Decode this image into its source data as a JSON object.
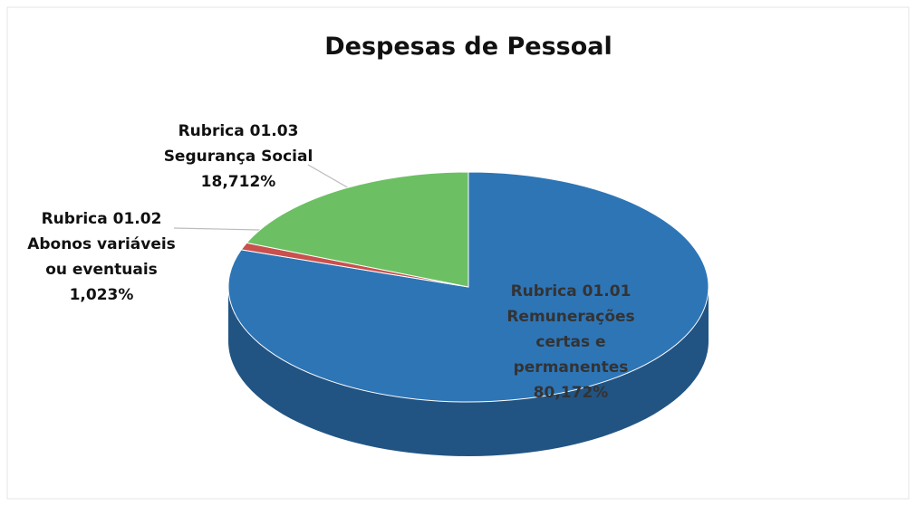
{
  "chart_data": {
    "type": "pie3d",
    "title": "Despesas de Pessoal",
    "categories": [
      "Rubrica 01.01\nRemunerações\ncertas e\npermanentes",
      "Rubrica 01.02\nAbonos variáveis\nou eventuais",
      "Rubrica  01.03\nSegurança Social"
    ],
    "values": [
      80.172,
      1.023,
      18.712
    ],
    "value_labels": [
      "80,172%",
      "1,023%",
      "18,712%"
    ],
    "colors": [
      "#2e75b6",
      "#c9504d",
      "#6cc063"
    ]
  }
}
